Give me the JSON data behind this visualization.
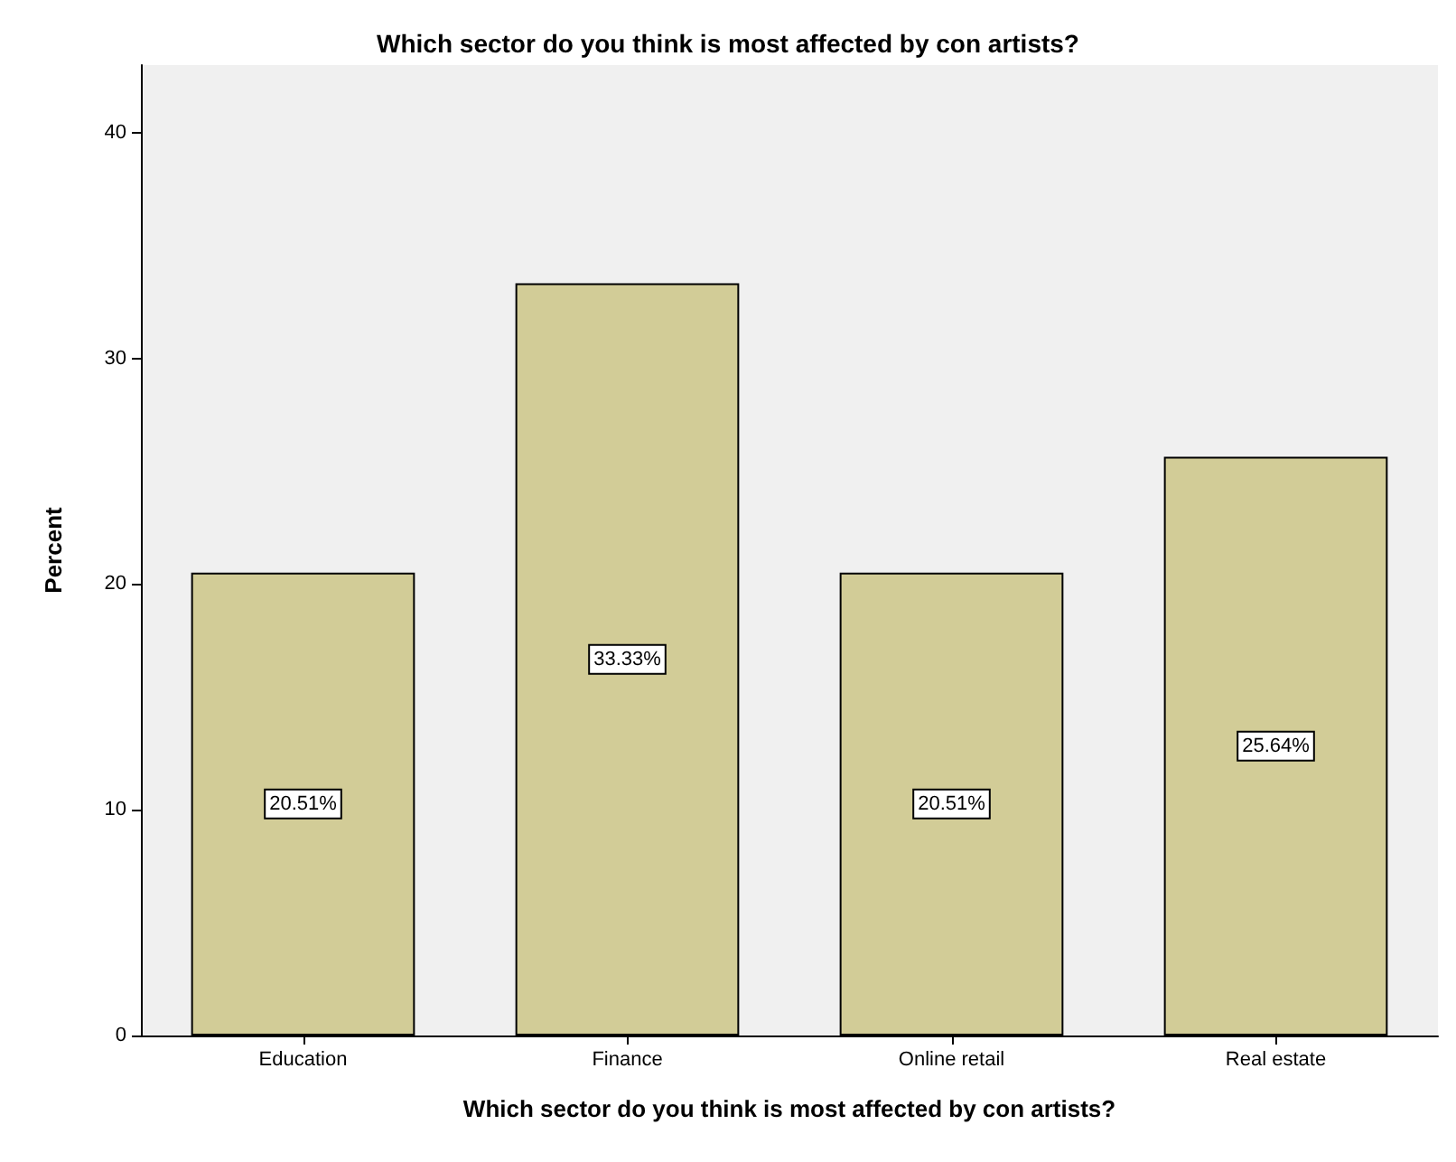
{
  "chart_data": {
    "type": "bar",
    "title": "Which sector do you think is most affected by con artists?",
    "xlabel": "Which sector do you think is most affected by con artists?",
    "ylabel": "Percent",
    "categories": [
      "Education",
      "Finance",
      "Online retail",
      "Real estate"
    ],
    "values": [
      20.51,
      33.33,
      20.51,
      25.64
    ],
    "value_labels": [
      "20.51%",
      "33.33%",
      "20.51%",
      "25.64%"
    ],
    "color": "#d2cc97",
    "ylim": [
      0,
      43
    ],
    "yticks": [
      0,
      10,
      20,
      30,
      40
    ],
    "grid": false
  }
}
